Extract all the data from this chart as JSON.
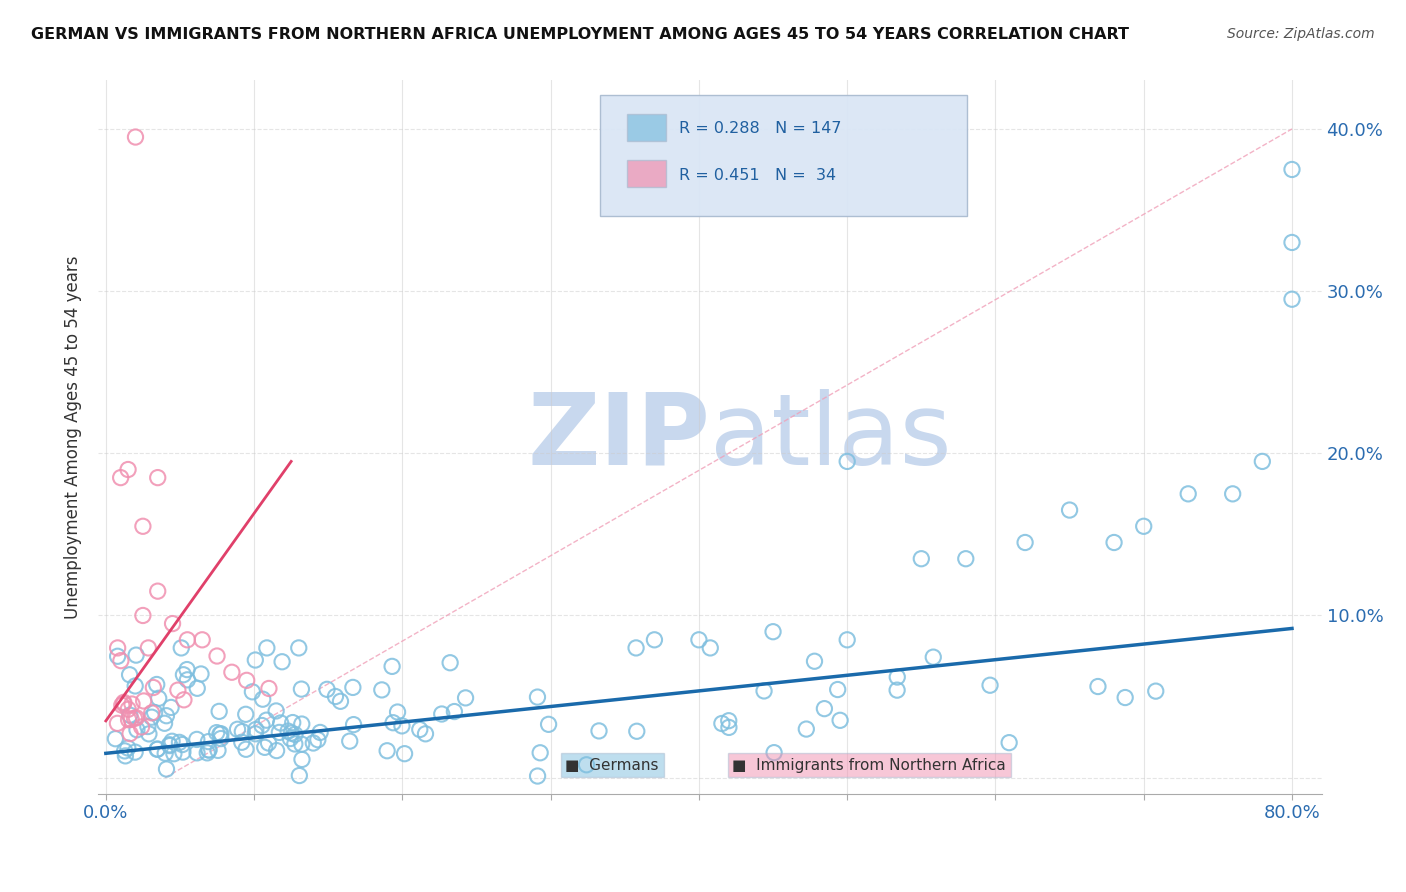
{
  "title": "GERMAN VS IMMIGRANTS FROM NORTHERN AFRICA UNEMPLOYMENT AMONG AGES 45 TO 54 YEARS CORRELATION CHART",
  "source": "Source: ZipAtlas.com",
  "ylabel": "Unemployment Among Ages 45 to 54 years",
  "xlim": [
    0,
    0.8
  ],
  "ylim": [
    -0.01,
    0.42
  ],
  "ylim_plot": [
    0,
    0.42
  ],
  "german_R": 0.288,
  "german_N": 147,
  "immigrant_R": 0.451,
  "immigrant_N": 34,
  "german_color": "#7fbfdf",
  "immigrant_color": "#f090b0",
  "german_line_color": "#1a6aab",
  "immigrant_line_color": "#e0406a",
  "watermark_color": "#c8d8ee",
  "background_color": "#ffffff",
  "legend_box_color": "#dae6f5",
  "legend_text_color": "#2060a0",
  "grid_color": "#cccccc"
}
